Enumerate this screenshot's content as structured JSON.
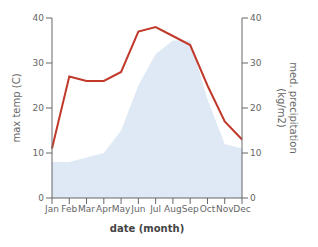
{
  "chart_data": {
    "type": "line",
    "categories": [
      "Jan",
      "Feb",
      "Mar",
      "Apr",
      "May",
      "Jun",
      "Jul",
      "Aug",
      "Sep",
      "Oct",
      "Nov",
      "Dec"
    ],
    "series": [
      {
        "type": "area",
        "axis": "y2",
        "color": "#b8cfe8",
        "values": [
          8,
          8,
          9,
          10,
          15,
          25,
          32,
          35,
          35,
          22,
          12,
          11
        ]
      },
      {
        "type": "line",
        "color": "#c0392b",
        "values": [
          11,
          27,
          26,
          26,
          28,
          37,
          38,
          36,
          34,
          25,
          17,
          13
        ]
      }
    ],
    "xlabel": "date (month)",
    "ylabel": "max temp (C)",
    "y2label": "med. precipitation\n(kg/m2)",
    "ylim": [
      0,
      40
    ],
    "yticks": [
      0,
      10,
      20,
      30,
      40
    ],
    "y2lim": [
      0,
      40
    ],
    "y2ticks": [
      0,
      10,
      20,
      30,
      40
    ],
    "grid": false
  }
}
